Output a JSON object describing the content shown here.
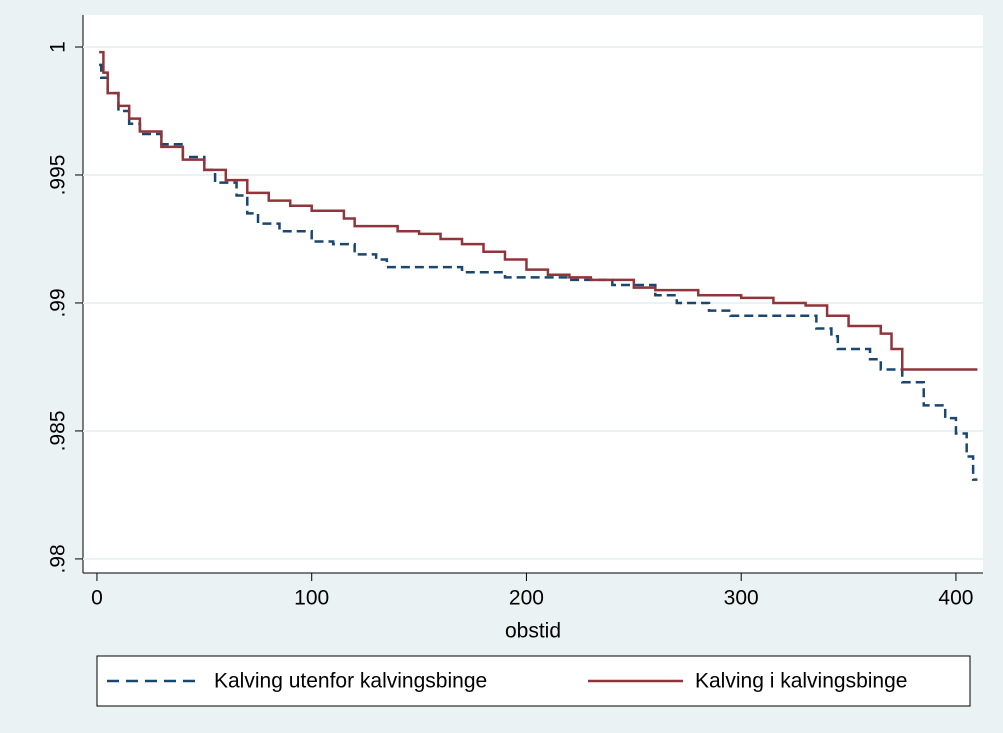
{
  "chart_data": {
    "type": "step",
    "xlabel": "obstid",
    "xlim": [
      -6.5,
      412.6
    ],
    "xticks": [
      0,
      100,
      200,
      300,
      400
    ],
    "ylim": [
      0.97945,
      1.00125
    ],
    "yticks": [
      {
        "value": 0.98,
        "label": ".98"
      },
      {
        "value": 0.985,
        "label": ".985"
      },
      {
        "value": 0.99,
        "label": ".99"
      },
      {
        "value": 0.995,
        "label": ".995"
      },
      1
    ],
    "grid": true,
    "series": [
      {
        "name": "Kalving utenfor kalvingsbinge",
        "color": "#1a476f",
        "dash": true,
        "x": [
          1,
          2,
          5,
          10,
          15,
          20,
          30,
          40,
          50,
          55,
          65,
          70,
          75,
          85,
          100,
          110,
          120,
          130,
          135,
          160,
          170,
          190,
          210,
          220,
          240,
          260,
          270,
          285,
          295,
          330,
          335,
          342,
          345,
          360,
          365,
          375,
          385,
          395,
          400,
          405,
          408,
          410
        ],
        "values": [
          0.9993,
          0.9988,
          0.9982,
          0.9975,
          0.997,
          0.9966,
          0.9962,
          0.9957,
          0.9952,
          0.9947,
          0.9942,
          0.9935,
          0.9931,
          0.9928,
          0.9924,
          0.9923,
          0.9919,
          0.9917,
          0.9914,
          0.9914,
          0.9912,
          0.991,
          0.991,
          0.9909,
          0.9907,
          0.9903,
          0.99,
          0.9897,
          0.9895,
          0.9895,
          0.989,
          0.9887,
          0.9882,
          0.9878,
          0.9874,
          0.9869,
          0.986,
          0.9855,
          0.9849,
          0.984,
          0.9831,
          0.9831
        ]
      },
      {
        "name": "Kalving i kalvingsbinge",
        "color": "#90353b",
        "dash": false,
        "x": [
          1,
          3,
          5,
          10,
          15,
          20,
          30,
          40,
          50,
          60,
          70,
          80,
          90,
          100,
          115,
          120,
          140,
          150,
          160,
          170,
          180,
          190,
          200,
          210,
          220,
          230,
          250,
          260,
          280,
          300,
          315,
          330,
          340,
          350,
          360,
          365,
          370,
          375,
          410
        ],
        "values": [
          0.9998,
          0.999,
          0.9982,
          0.9977,
          0.9972,
          0.9967,
          0.9961,
          0.9956,
          0.9952,
          0.9948,
          0.9943,
          0.994,
          0.9938,
          0.9936,
          0.9933,
          0.993,
          0.9928,
          0.9927,
          0.9925,
          0.9923,
          0.992,
          0.9917,
          0.9913,
          0.9911,
          0.991,
          0.9909,
          0.9906,
          0.9905,
          0.9903,
          0.9902,
          0.99,
          0.9899,
          0.9895,
          0.9891,
          0.9891,
          0.9888,
          0.9882,
          0.9874,
          0.9874
        ]
      }
    ]
  }
}
